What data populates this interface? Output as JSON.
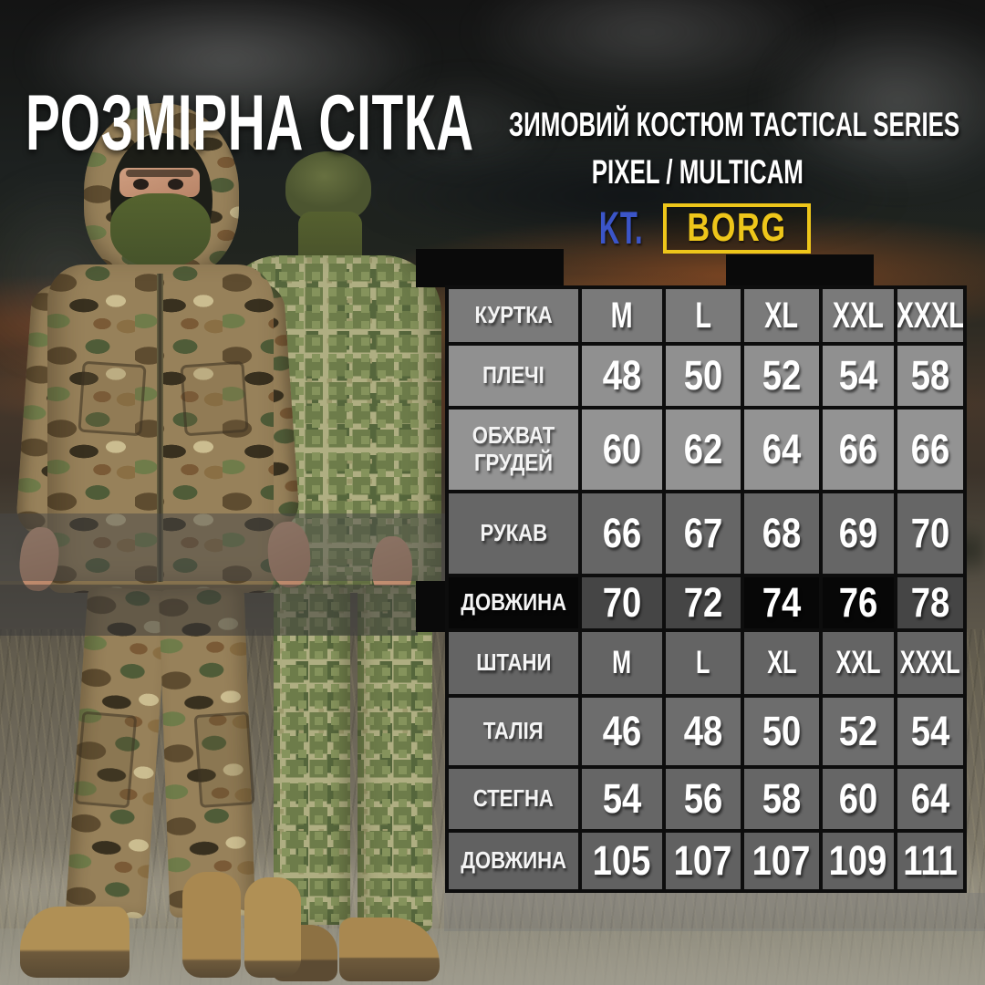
{
  "title": "РОЗМІРНА СІТКА",
  "subtitle": {
    "line1": "ЗИМОВИЙ КОСТЮМ TACTICAL SERIES",
    "line2": "PIXEL / MULTICAM"
  },
  "brand": {
    "prefix": "KT.",
    "name": "BORG"
  },
  "colors": {
    "brand_blue": "#3b55c8",
    "brand_yellow": "#eec61a",
    "table_border": "#0d0d0d",
    "highlight_row_bg": "#070707",
    "text": "#ffffff"
  },
  "table": {
    "rows": [
      {
        "label": "КУРТКА",
        "values": [
          "M",
          "L",
          "XL",
          "XXL",
          "XXXL"
        ],
        "size_row": true
      },
      {
        "label": "ПЛЕЧІ",
        "values": [
          "48",
          "50",
          "52",
          "54",
          "58"
        ]
      },
      {
        "label": "ОБХВАТ ГРУДЕЙ",
        "values": [
          "60",
          "62",
          "64",
          "66",
          "66"
        ]
      },
      {
        "label": "РУКАВ",
        "values": [
          "66",
          "67",
          "68",
          "69",
          "70"
        ]
      },
      {
        "label": "ДОВЖИНА",
        "values": [
          "70",
          "72",
          "74",
          "76",
          "78"
        ],
        "highlight": true
      },
      {
        "label": "ШТАНИ",
        "values": [
          "M",
          "L",
          "XL",
          "XXL",
          "XXXL"
        ],
        "size_row": true
      },
      {
        "label": "ТАЛІЯ",
        "values": [
          "46",
          "48",
          "50",
          "52",
          "54"
        ]
      },
      {
        "label": "СТЕГНА",
        "values": [
          "54",
          "56",
          "58",
          "60",
          "64"
        ]
      },
      {
        "label": "ДОВЖИНА",
        "values": [
          "105",
          "107",
          "107",
          "109",
          "111"
        ]
      }
    ]
  }
}
